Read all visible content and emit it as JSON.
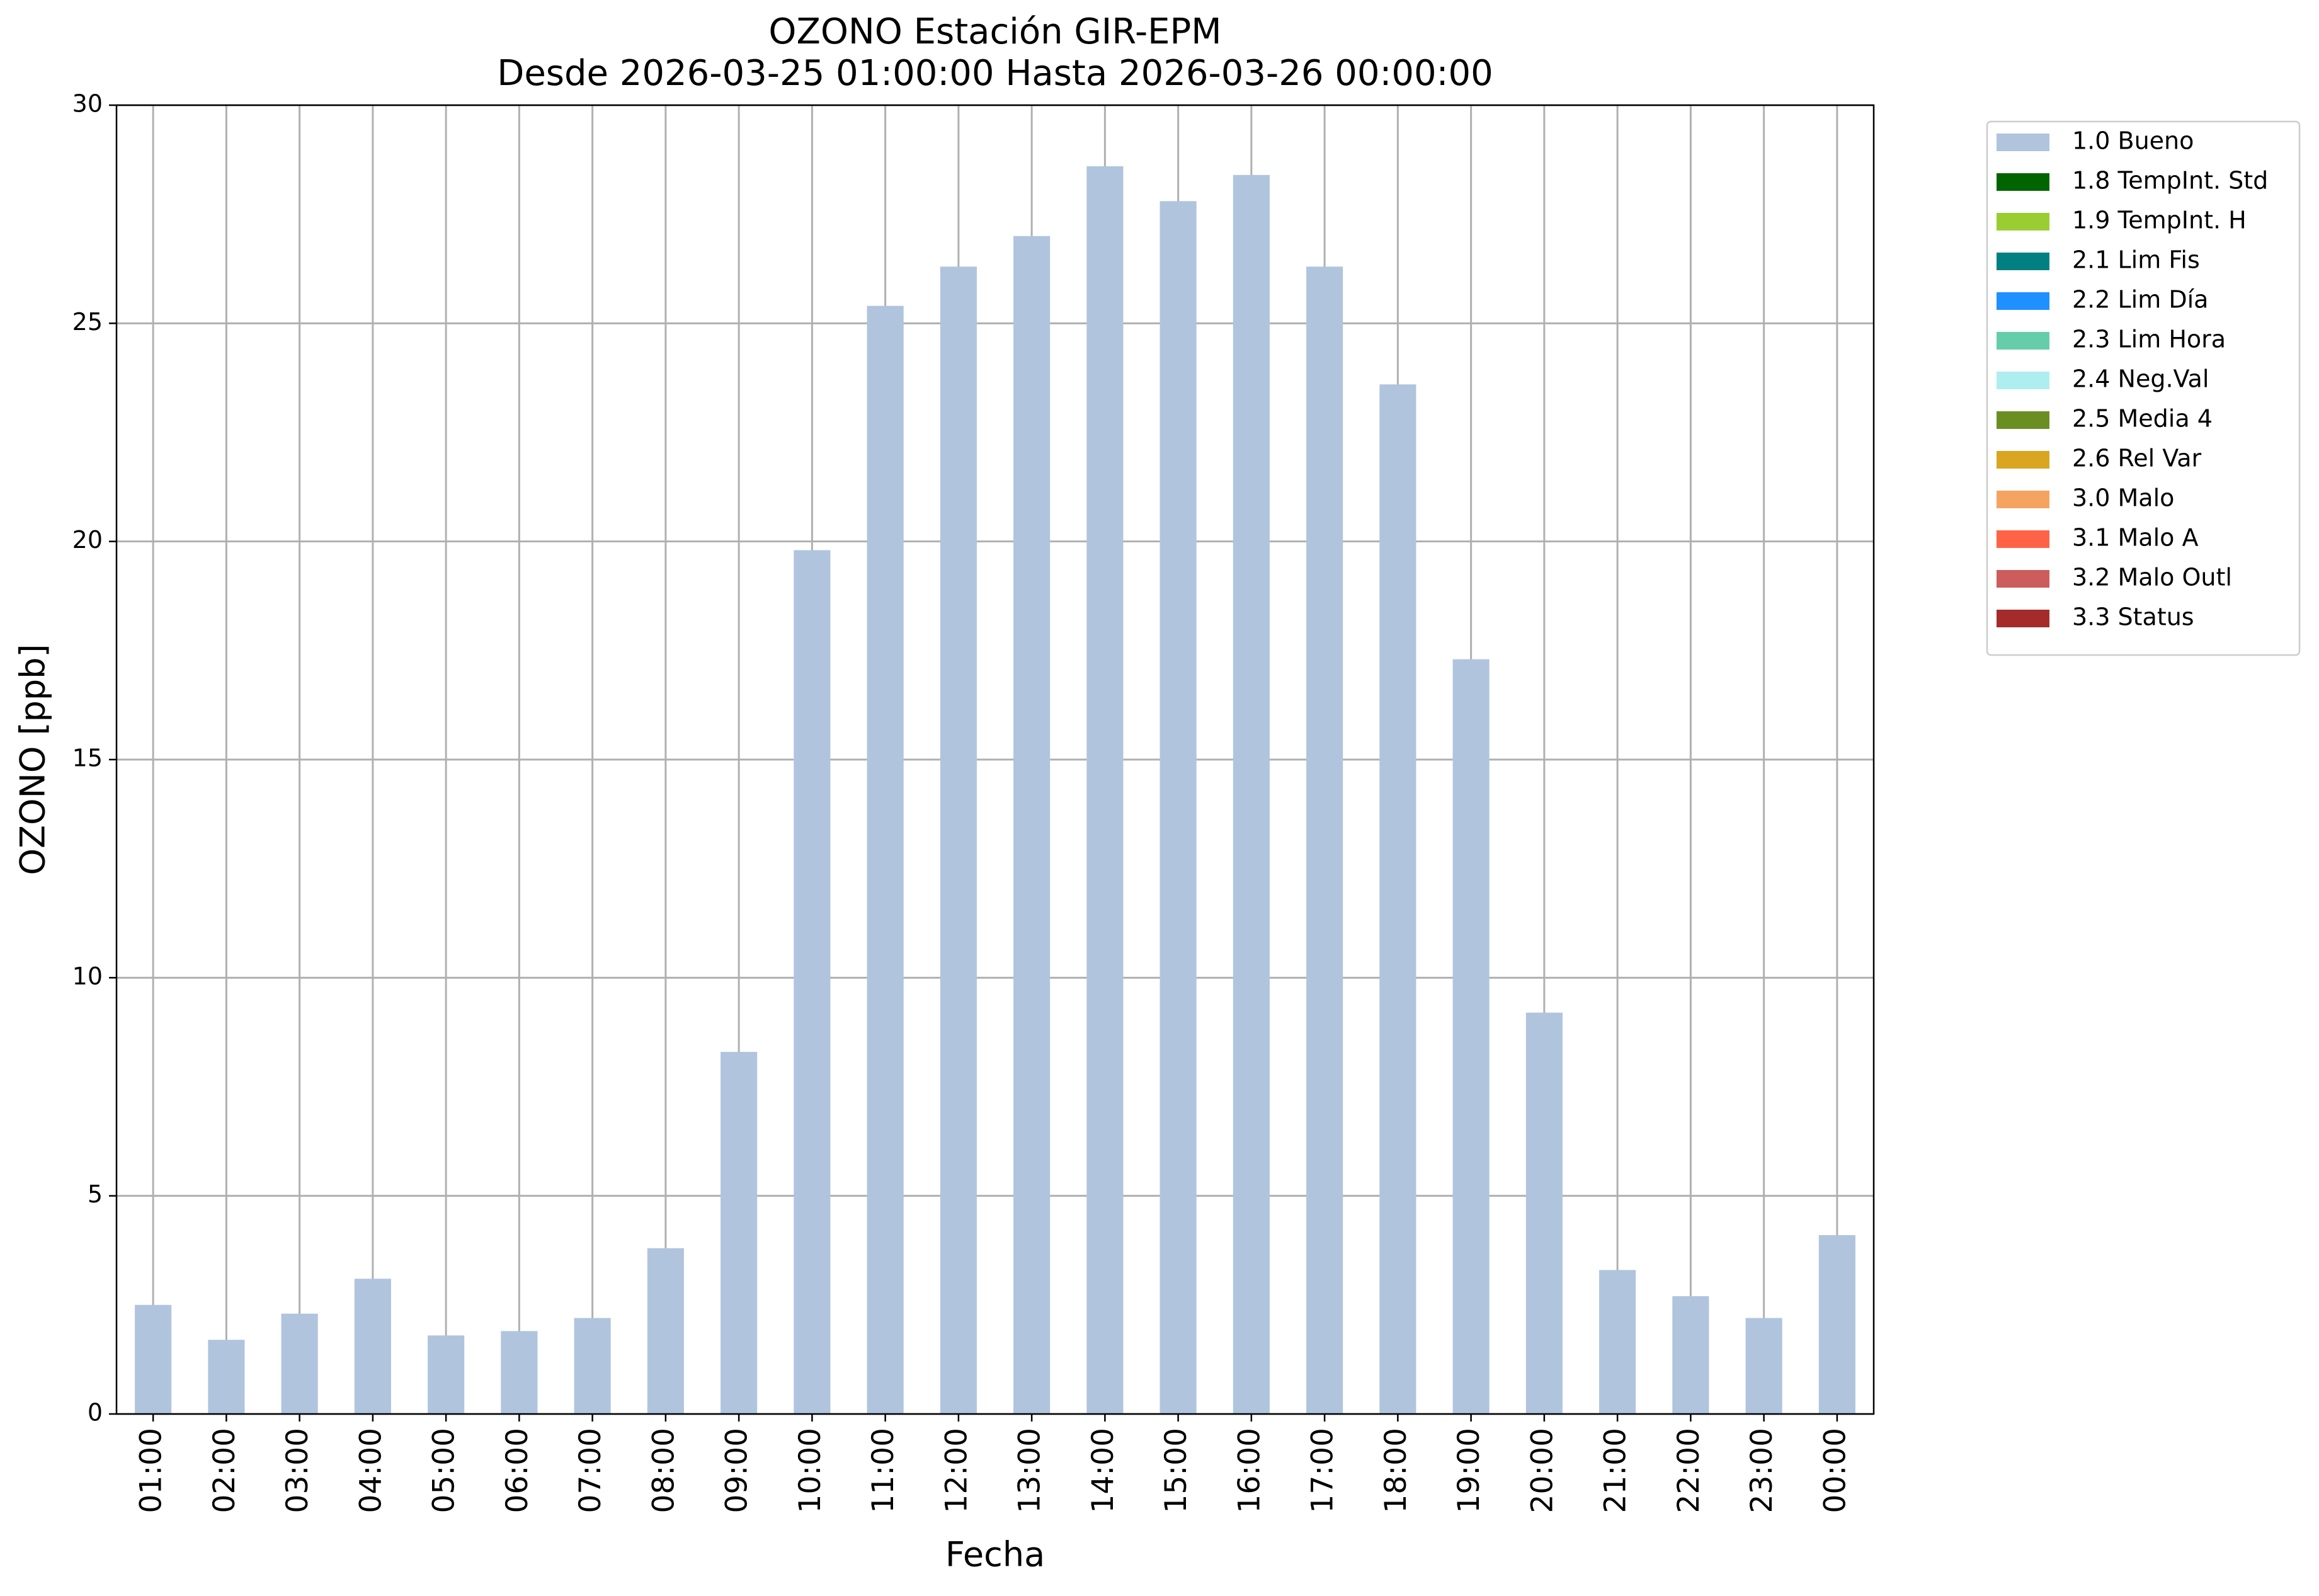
{
  "chart_data": {
    "type": "bar",
    "stacked": true,
    "title": "OZONO Estación GIR-EPM",
    "subtitle": "Desde 2026-03-25 01:00:00 Hasta 2026-03-26 00:00:00",
    "x_label": "Fecha",
    "y_label": "OZONO [ppb]",
    "categories": [
      "01:00",
      "02:00",
      "03:00",
      "04:00",
      "05:00",
      "06:00",
      "07:00",
      "08:00",
      "09:00",
      "10:00",
      "11:00",
      "12:00",
      "13:00",
      "14:00",
      "15:00",
      "16:00",
      "17:00",
      "18:00",
      "19:00",
      "20:00",
      "21:00",
      "22:00",
      "23:00",
      "00:00"
    ],
    "series": [
      {
        "name": "1.0 Bueno",
        "color": "#b0c4de",
        "values": [
          2.5,
          1.7,
          2.3,
          3.1,
          1.8,
          1.9,
          2.2,
          3.8,
          8.3,
          19.8,
          25.4,
          26.3,
          27.0,
          28.6,
          27.8,
          28.4,
          26.3,
          23.6,
          17.3,
          9.2,
          3.3,
          2.7,
          2.2,
          4.1
        ]
      },
      {
        "name": "1.8 TempInt. Std",
        "color": "#006400",
        "values": [
          0,
          0,
          0,
          0,
          0,
          0,
          0,
          0,
          0,
          0,
          0,
          0,
          0,
          0,
          0,
          0,
          0,
          0,
          0,
          0,
          0,
          0,
          0,
          0
        ]
      },
      {
        "name": "1.9 TempInt. H",
        "color": "#9acd32",
        "values": [
          0,
          0,
          0,
          0,
          0,
          0,
          0,
          0,
          0,
          0,
          0,
          0,
          0,
          0,
          0,
          0,
          0,
          0,
          0,
          0,
          0,
          0,
          0,
          0
        ]
      },
      {
        "name": "2.1 Lim Fis",
        "color": "#008080",
        "values": [
          0,
          0,
          0,
          0,
          0,
          0,
          0,
          0,
          0,
          0,
          0,
          0,
          0,
          0,
          0,
          0,
          0,
          0,
          0,
          0,
          0,
          0,
          0,
          0
        ]
      },
      {
        "name": "2.2 Lim Día",
        "color": "#1e90ff",
        "values": [
          0,
          0,
          0,
          0,
          0,
          0,
          0,
          0,
          0,
          0,
          0,
          0,
          0,
          0,
          0,
          0,
          0,
          0,
          0,
          0,
          0,
          0,
          0,
          0
        ]
      },
      {
        "name": "2.3 Lim Hora",
        "color": "#66cdaa",
        "values": [
          0,
          0,
          0,
          0,
          0,
          0,
          0,
          0,
          0,
          0,
          0,
          0,
          0,
          0,
          0,
          0,
          0,
          0,
          0,
          0,
          0,
          0,
          0,
          0
        ]
      },
      {
        "name": "2.4 Neg.Val",
        "color": "#afeeee",
        "values": [
          0,
          0,
          0,
          0,
          0,
          0,
          0,
          0,
          0,
          0,
          0,
          0,
          0,
          0,
          0,
          0,
          0,
          0,
          0,
          0,
          0,
          0,
          0,
          0
        ]
      },
      {
        "name": "2.5 Media 4",
        "color": "#6b8e23",
        "values": [
          0,
          0,
          0,
          0,
          0,
          0,
          0,
          0,
          0,
          0,
          0,
          0,
          0,
          0,
          0,
          0,
          0,
          0,
          0,
          0,
          0,
          0,
          0,
          0
        ]
      },
      {
        "name": "2.6 Rel Var",
        "color": "#daa520",
        "values": [
          0,
          0,
          0,
          0,
          0,
          0,
          0,
          0,
          0,
          0,
          0,
          0,
          0,
          0,
          0,
          0,
          0,
          0,
          0,
          0,
          0,
          0,
          0,
          0
        ]
      },
      {
        "name": "3.0 Malo",
        "color": "#f4a460",
        "values": [
          0,
          0,
          0,
          0,
          0,
          0,
          0,
          0,
          0,
          0,
          0,
          0,
          0,
          0,
          0,
          0,
          0,
          0,
          0,
          0,
          0,
          0,
          0,
          0
        ]
      },
      {
        "name": "3.1 Malo A",
        "color": "#ff6347",
        "values": [
          0,
          0,
          0,
          0,
          0,
          0,
          0,
          0,
          0,
          0,
          0,
          0,
          0,
          0,
          0,
          0,
          0,
          0,
          0,
          0,
          0,
          0,
          0,
          0
        ]
      },
      {
        "name": "3.2 Malo Outl",
        "color": "#cd5c5c",
        "values": [
          0,
          0,
          0,
          0,
          0,
          0,
          0,
          0,
          0,
          0,
          0,
          0,
          0,
          0,
          0,
          0,
          0,
          0,
          0,
          0,
          0,
          0,
          0,
          0
        ]
      },
      {
        "name": "3.3 Status",
        "color": "#a52a2a",
        "values": [
          0,
          0,
          0,
          0,
          0,
          0,
          0,
          0,
          0,
          0,
          0,
          0,
          0,
          0,
          0,
          0,
          0,
          0,
          0,
          0,
          0,
          0,
          0,
          0
        ]
      }
    ],
    "ylim": [
      0,
      30
    ],
    "yticks": [
      0,
      5,
      10,
      15,
      20,
      25,
      30
    ],
    "grid": true,
    "legend": "outside upper right"
  }
}
